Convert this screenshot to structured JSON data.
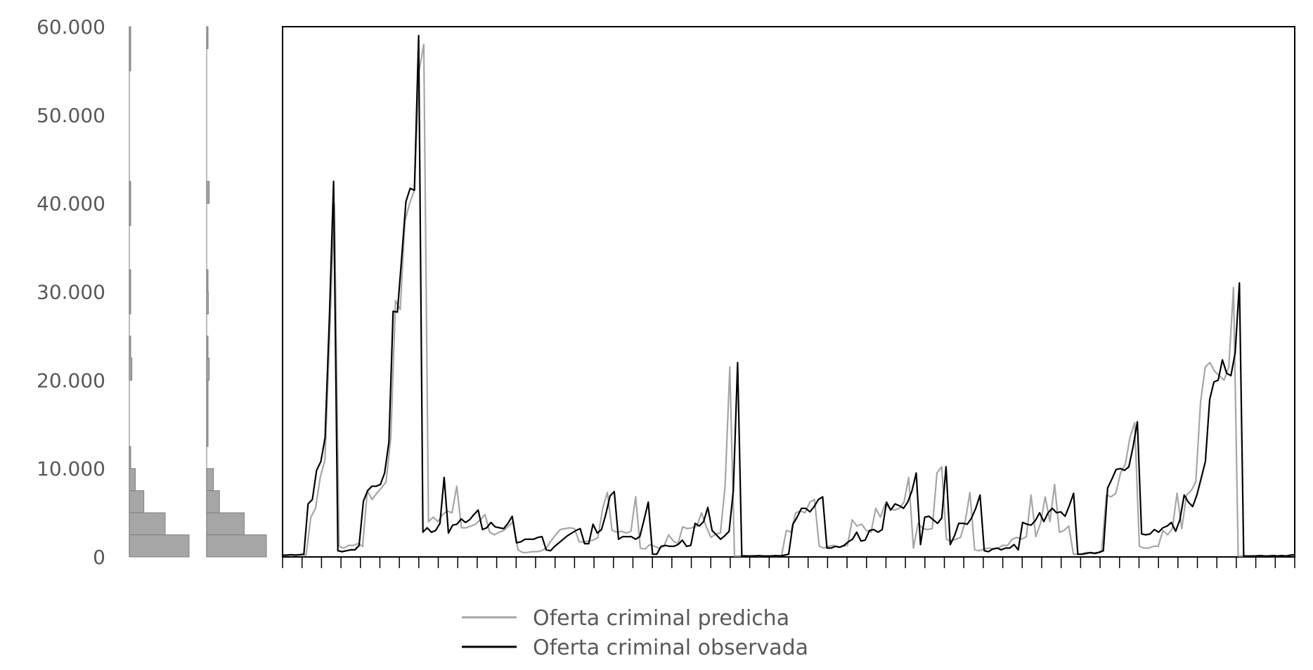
{
  "chart_data": {
    "type": "line",
    "title": "",
    "xlabel": "",
    "ylabel": "",
    "ylim": [
      0,
      60000
    ],
    "yticks": [
      {
        "value": 0,
        "label": "0"
      },
      {
        "value": 10000,
        "label": "10.000"
      },
      {
        "value": 20000,
        "label": "20.000"
      },
      {
        "value": 30000,
        "label": "30.000"
      },
      {
        "value": 40000,
        "label": "40.000"
      },
      {
        "value": 50000,
        "label": "50.000"
      },
      {
        "value": 60000,
        "label": "60.000"
      }
    ],
    "legend": {
      "position": "bottom",
      "entries": [
        {
          "label": "Oferta criminal predicha",
          "color": "#a6a6a6"
        },
        {
          "label": "Oferta criminal observada",
          "color": "#000000"
        }
      ]
    },
    "colors": {
      "predicha": "#a6a6a6",
      "observada": "#000000",
      "hist_fill": "#a6a6a6",
      "hist_edge": "#7f7f7f"
    },
    "x_tick_count": 52,
    "series": [
      {
        "key": "predicha",
        "values": [
          200,
          200,
          250,
          200,
          250,
          200,
          4500,
          5500,
          9000,
          11000,
          25000,
          40000,
          1200,
          1000,
          1300,
          1300,
          1500,
          1200,
          7500,
          6500,
          7200,
          7800,
          8500,
          13500,
          29000,
          28000,
          38000,
          40000,
          41500,
          55000,
          58000,
          4000,
          4500,
          4000,
          4800,
          5200,
          5000,
          8000,
          3300,
          3300,
          3500,
          3700,
          4200,
          4800,
          2800,
          2500,
          2800,
          3000,
          3500,
          4000,
          800,
          500,
          500,
          600,
          600,
          700,
          1000,
          1800,
          2500,
          3100,
          3200,
          3300,
          3200,
          1700,
          1700,
          1800,
          1900,
          2200,
          5500,
          7300,
          3000,
          2800,
          2900,
          2700,
          2900,
          6800,
          1000,
          900,
          1400,
          1200,
          1000,
          1200,
          2500,
          1800,
          1500,
          3400,
          3200,
          3300,
          3500,
          5000,
          3400,
          2200,
          2600,
          2700,
          8000,
          21500,
          100,
          100,
          150,
          100,
          150,
          100,
          100,
          100,
          150,
          100,
          200,
          3000,
          2800,
          5000,
          5200,
          5000,
          6200,
          6500,
          1200,
          1000,
          1200,
          1300,
          1100,
          1200,
          1300,
          4200,
          3500,
          3700,
          3000,
          2800,
          5500,
          4500,
          6000,
          5500,
          5300,
          5500,
          6200,
          9000,
          1000,
          3800,
          3200,
          3100,
          3200,
          9500,
          10200,
          2000,
          1800,
          2000,
          2200,
          4000,
          7300,
          800,
          700,
          900,
          1000,
          900,
          1000,
          1300,
          1300,
          2000,
          2200,
          2000,
          2300,
          7000,
          2300,
          3800,
          6800,
          4000,
          8200,
          2800,
          3000,
          3500,
          300,
          300,
          400,
          500,
          400,
          500,
          700,
          7000,
          6800,
          7200,
          9500,
          10500,
          13500,
          15200,
          1200,
          1000,
          1000,
          1200,
          1200,
          3000,
          2500,
          3200,
          7200,
          3200,
          7000,
          7500,
          8500,
          17500,
          21500,
          22000,
          21000,
          20500,
          20000,
          21500,
          30500,
          100,
          100,
          100,
          100,
          150,
          100,
          100,
          150,
          100,
          150,
          100,
          200,
          250
        ]
      },
      {
        "key": "observada",
        "values": [
          200,
          200,
          250,
          200,
          250,
          300,
          6000,
          6500,
          9800,
          10800,
          13500,
          27000,
          42500,
          700,
          600,
          700,
          800,
          800,
          1300,
          6300,
          7500,
          8000,
          8000,
          8200,
          9500,
          13000,
          27800,
          27700,
          33800,
          40200,
          41700,
          41500,
          59000,
          2800,
          3300,
          2800,
          3000,
          3800,
          9000,
          2700,
          3600,
          3700,
          4300,
          3900,
          4200,
          4800,
          5300,
          3100,
          3300,
          3900,
          3400,
          3300,
          3200,
          3800,
          4600,
          1600,
          1700,
          2000,
          2000,
          2000,
          2200,
          2300,
          800,
          700,
          1200,
          1600,
          2000,
          2400,
          2700,
          3000,
          3200,
          1500,
          1500,
          3700,
          2700,
          3100,
          4800,
          6900,
          7400,
          2000,
          2300,
          2300,
          2300,
          2000,
          2300,
          4200,
          6200,
          300,
          300,
          1200,
          1300,
          1200,
          1200,
          1400,
          1900,
          1200,
          1300,
          3800,
          3500,
          4000,
          5600,
          3000,
          2500,
          2000,
          2400,
          2900,
          7500,
          22000,
          100,
          100,
          100,
          100,
          150,
          100,
          100,
          100,
          150,
          100,
          200,
          300,
          3700,
          4500,
          5500,
          5500,
          5100,
          5700,
          6500,
          6800,
          1000,
          1000,
          1200,
          1100,
          1300,
          1700,
          2000,
          2800,
          1800,
          1900,
          3000,
          3100,
          2800,
          3100,
          6200,
          5300,
          6000,
          5800,
          5500,
          6200,
          7500,
          9500,
          1400,
          4500,
          4600,
          4200,
          3800,
          4400,
          10200,
          1400,
          2400,
          3800,
          3800,
          3700,
          4400,
          5500,
          7000,
          700,
          600,
          900,
          1000,
          800,
          1000,
          1000,
          1400,
          800,
          3900,
          3700,
          3600,
          4100,
          5000,
          4000,
          5000,
          5500,
          5000,
          5100,
          4600,
          5800,
          7200,
          300,
          300,
          400,
          500,
          400,
          500,
          700,
          7800,
          8800,
          9900,
          10000,
          9800,
          10200,
          12500,
          15300,
          2600,
          2500,
          2600,
          3100,
          2800,
          3300,
          3500,
          3900,
          2900,
          4200,
          7000,
          6200,
          5700,
          7000,
          8900,
          10800,
          17800,
          19800,
          20000,
          22300,
          20800,
          20500,
          23100,
          31000,
          100,
          100,
          100,
          100,
          150,
          100,
          100,
          150,
          100,
          150,
          100,
          200,
          250
        ]
      }
    ],
    "histograms": [
      {
        "key": "predicha",
        "bins": [
          {
            "from": 0,
            "to": 2500,
            "count": 70
          },
          {
            "from": 2500,
            "to": 5000,
            "count": 42
          },
          {
            "from": 5000,
            "to": 7500,
            "count": 17
          },
          {
            "from": 7500,
            "to": 10000,
            "count": 7
          },
          {
            "from": 10000,
            "to": 12500,
            "count": 1
          },
          {
            "from": 20000,
            "to": 22500,
            "count": 3
          },
          {
            "from": 22500,
            "to": 25000,
            "count": 1
          },
          {
            "from": 27500,
            "to": 30000,
            "count": 1
          },
          {
            "from": 30000,
            "to": 32500,
            "count": 1
          },
          {
            "from": 37500,
            "to": 40000,
            "count": 1
          },
          {
            "from": 40000,
            "to": 42500,
            "count": 1
          },
          {
            "from": 55000,
            "to": 57500,
            "count": 1
          },
          {
            "from": 57500,
            "to": 60000,
            "count": 1
          }
        ]
      },
      {
        "key": "observada",
        "bins": [
          {
            "from": 0,
            "to": 2500,
            "count": 70
          },
          {
            "from": 2500,
            "to": 5000,
            "count": 44
          },
          {
            "from": 5000,
            "to": 7500,
            "count": 15
          },
          {
            "from": 7500,
            "to": 10000,
            "count": 8
          },
          {
            "from": 12500,
            "to": 15000,
            "count": 1
          },
          {
            "from": 15000,
            "to": 17500,
            "count": 1
          },
          {
            "from": 17500,
            "to": 20000,
            "count": 1
          },
          {
            "from": 20000,
            "to": 22500,
            "count": 3
          },
          {
            "from": 22500,
            "to": 25000,
            "count": 1
          },
          {
            "from": 27500,
            "to": 30000,
            "count": 2
          },
          {
            "from": 30000,
            "to": 32500,
            "count": 1
          },
          {
            "from": 40000,
            "to": 42500,
            "count": 3
          },
          {
            "from": 57500,
            "to": 60000,
            "count": 1
          }
        ]
      }
    ]
  }
}
